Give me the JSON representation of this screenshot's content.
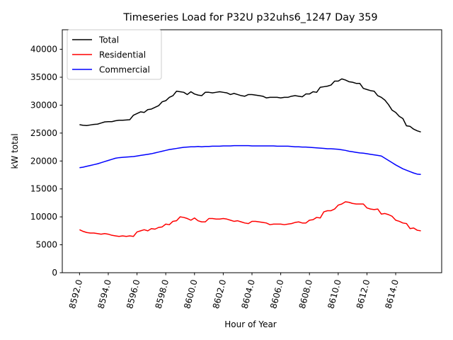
{
  "chart_data": {
    "type": "line",
    "title": "Timeseries Load for P32U p32uhs6_1247  Day 359",
    "xlabel": "Hour of Year",
    "ylabel": "kW total",
    "xlim": [
      8590.8,
      8617.2
    ],
    "ylim": [
      0,
      43500
    ],
    "x_ticks": [
      8592,
      8594,
      8596,
      8598,
      8600,
      8602,
      8604,
      8606,
      8608,
      8610,
      8612,
      8614
    ],
    "x_tick_labels": [
      "8592.0",
      "8594.0",
      "8596.0",
      "8598.0",
      "8600.0",
      "8602.0",
      "8604.0",
      "8606.0",
      "8608.0",
      "8610.0",
      "8612.0",
      "8614.0"
    ],
    "y_ticks": [
      0,
      5000,
      10000,
      15000,
      20000,
      25000,
      30000,
      35000,
      40000
    ],
    "y_tick_labels": [
      "0",
      "5000",
      "10000",
      "15000",
      "20000",
      "25000",
      "30000",
      "35000",
      "40000"
    ],
    "legend_position": "top-left",
    "x": [
      8592.0,
      8592.25,
      8592.5,
      8592.75,
      8593.0,
      8593.25,
      8593.5,
      8593.75,
      8594.0,
      8594.25,
      8594.5,
      8594.75,
      8595.0,
      8595.25,
      8595.5,
      8595.75,
      8596.0,
      8596.25,
      8596.5,
      8596.75,
      8597.0,
      8597.25,
      8597.5,
      8597.75,
      8598.0,
      8598.25,
      8598.5,
      8598.75,
      8599.0,
      8599.25,
      8599.5,
      8599.75,
      8600.0,
      8600.25,
      8600.5,
      8600.75,
      8601.0,
      8601.25,
      8601.5,
      8601.75,
      8602.0,
      8602.25,
      8602.5,
      8602.75,
      8603.0,
      8603.25,
      8603.5,
      8603.75,
      8604.0,
      8604.25,
      8604.5,
      8604.75,
      8605.0,
      8605.25,
      8605.5,
      8605.75,
      8606.0,
      8606.25,
      8606.5,
      8606.75,
      8607.0,
      8607.25,
      8607.5,
      8607.75,
      8608.0,
      8608.25,
      8608.5,
      8608.75,
      8609.0,
      8609.25,
      8609.5,
      8609.75,
      8610.0,
      8610.25,
      8610.5,
      8610.75,
      8611.0,
      8611.25,
      8611.5,
      8611.75,
      8612.0,
      8612.25,
      8612.5,
      8612.75,
      8613.0,
      8613.25,
      8613.5,
      8613.75,
      8614.0,
      8614.25,
      8614.5,
      8614.75,
      8615.0,
      8615.25,
      8615.5,
      8615.75
    ],
    "series": [
      {
        "name": "Total",
        "color": "#000000",
        "values": [
          26500,
          26400,
          26350,
          26450,
          26550,
          26600,
          26800,
          27000,
          27050,
          27050,
          27200,
          27300,
          27300,
          27350,
          27400,
          28200,
          28500,
          28800,
          28700,
          29200,
          29300,
          29600,
          29900,
          30600,
          30800,
          31400,
          31700,
          32500,
          32400,
          32300,
          31900,
          32400,
          32000,
          31800,
          31700,
          32300,
          32300,
          32200,
          32300,
          32400,
          32300,
          32200,
          31900,
          32100,
          31900,
          31700,
          31600,
          31900,
          31900,
          31800,
          31700,
          31600,
          31300,
          31400,
          31400,
          31400,
          31300,
          31400,
          31400,
          31600,
          31700,
          31600,
          31500,
          32000,
          32000,
          32400,
          32300,
          33200,
          33300,
          33400,
          33600,
          34300,
          34300,
          34700,
          34500,
          34200,
          34100,
          33900,
          33900,
          33000,
          32800,
          32600,
          32500,
          31700,
          31400,
          30900,
          30100,
          29100,
          28700,
          28000,
          27600,
          26300,
          26200,
          25700,
          25400,
          25200
        ]
      },
      {
        "name": "Residential",
        "color": "#ff0000",
        "values": [
          7700,
          7400,
          7200,
          7100,
          7100,
          7000,
          6900,
          7000,
          6900,
          6700,
          6600,
          6500,
          6600,
          6500,
          6600,
          6500,
          7300,
          7500,
          7700,
          7500,
          7900,
          7800,
          8100,
          8200,
          8700,
          8600,
          9200,
          9300,
          10000,
          9900,
          9700,
          9400,
          9800,
          9300,
          9100,
          9100,
          9700,
          9700,
          9600,
          9600,
          9700,
          9600,
          9400,
          9200,
          9300,
          9100,
          8900,
          8800,
          9200,
          9200,
          9100,
          9000,
          8900,
          8600,
          8700,
          8700,
          8700,
          8600,
          8700,
          8800,
          9000,
          9100,
          8900,
          8900,
          9400,
          9500,
          9900,
          9800,
          10900,
          11100,
          11100,
          11400,
          12100,
          12300,
          12700,
          12600,
          12400,
          12300,
          12300,
          12300,
          11600,
          11400,
          11300,
          11400,
          10500,
          10600,
          10400,
          10100,
          9400,
          9200,
          8900,
          8800,
          7900,
          8000,
          7600,
          7500
        ]
      },
      {
        "name": "Commercial",
        "color": "#0000ff",
        "values": [
          18800,
          18900,
          19050,
          19200,
          19350,
          19500,
          19700,
          19900,
          20100,
          20300,
          20500,
          20600,
          20650,
          20700,
          20750,
          20800,
          20900,
          21000,
          21100,
          21200,
          21300,
          21450,
          21600,
          21750,
          21900,
          22050,
          22150,
          22250,
          22350,
          22450,
          22500,
          22550,
          22550,
          22600,
          22550,
          22600,
          22600,
          22650,
          22650,
          22650,
          22700,
          22700,
          22700,
          22750,
          22750,
          22750,
          22750,
          22750,
          22700,
          22700,
          22700,
          22700,
          22700,
          22700,
          22700,
          22650,
          22650,
          22650,
          22650,
          22600,
          22550,
          22550,
          22500,
          22500,
          22450,
          22400,
          22350,
          22300,
          22250,
          22200,
          22200,
          22150,
          22100,
          22000,
          21900,
          21750,
          21650,
          21550,
          21450,
          21400,
          21300,
          21200,
          21100,
          21000,
          20900,
          20500,
          20100,
          19700,
          19300,
          18950,
          18600,
          18350,
          18100,
          17850,
          17650,
          17600
        ]
      }
    ]
  }
}
